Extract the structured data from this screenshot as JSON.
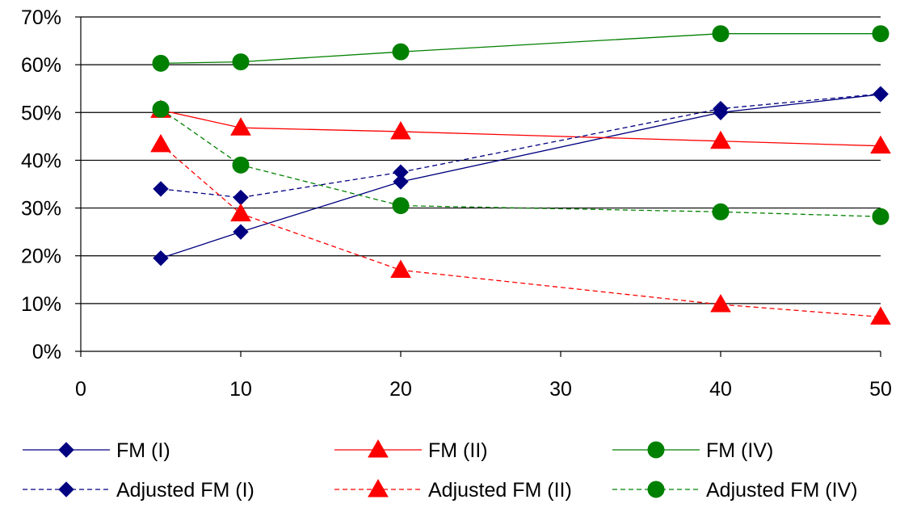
{
  "chart_data": {
    "type": "line",
    "title": "",
    "xlabel": "",
    "ylabel": "",
    "xlim": [
      0,
      50
    ],
    "ylim": [
      0,
      70
    ],
    "x_ticks": [
      0,
      10,
      20,
      30,
      40,
      50
    ],
    "y_ticks": [
      0,
      10,
      20,
      30,
      40,
      50,
      60,
      70
    ],
    "x_tick_labels": [
      "0",
      "10",
      "20",
      "30",
      "40",
      "50"
    ],
    "y_tick_labels": [
      "0%",
      "10%",
      "20%",
      "30%",
      "40%",
      "50%",
      "60%",
      "70%"
    ],
    "grid": "horizontal",
    "legend_position": "bottom",
    "x": [
      5,
      10,
      20,
      40,
      50
    ],
    "series": [
      {
        "name": "FM (I)",
        "values": [
          19.5,
          25.0,
          35.5,
          50.0,
          53.8
        ],
        "color": "#000080",
        "marker": "diamond",
        "dash": "solid"
      },
      {
        "name": "FM (II)",
        "values": [
          50.5,
          46.8,
          46.0,
          44.0,
          43.0
        ],
        "color": "#ff0000",
        "marker": "triangle",
        "dash": "solid"
      },
      {
        "name": "FM (IV)",
        "values": [
          60.3,
          60.6,
          62.7,
          66.5,
          66.5
        ],
        "color": "#008000",
        "marker": "circle",
        "dash": "solid"
      },
      {
        "name": "Adjusted FM (I)",
        "values": [
          34.0,
          32.2,
          37.5,
          50.8,
          53.9
        ],
        "color": "#000080",
        "marker": "diamond",
        "dash": "dashed"
      },
      {
        "name": "Adjusted FM (II)",
        "values": [
          43.3,
          28.8,
          17.0,
          9.8,
          7.2
        ],
        "color": "#ff0000",
        "marker": "triangle",
        "dash": "dashed"
      },
      {
        "name": "Adjusted FM (IV)",
        "values": [
          50.7,
          39.0,
          30.5,
          29.2,
          28.2
        ],
        "color": "#008000",
        "marker": "circle",
        "dash": "dashed"
      }
    ]
  }
}
